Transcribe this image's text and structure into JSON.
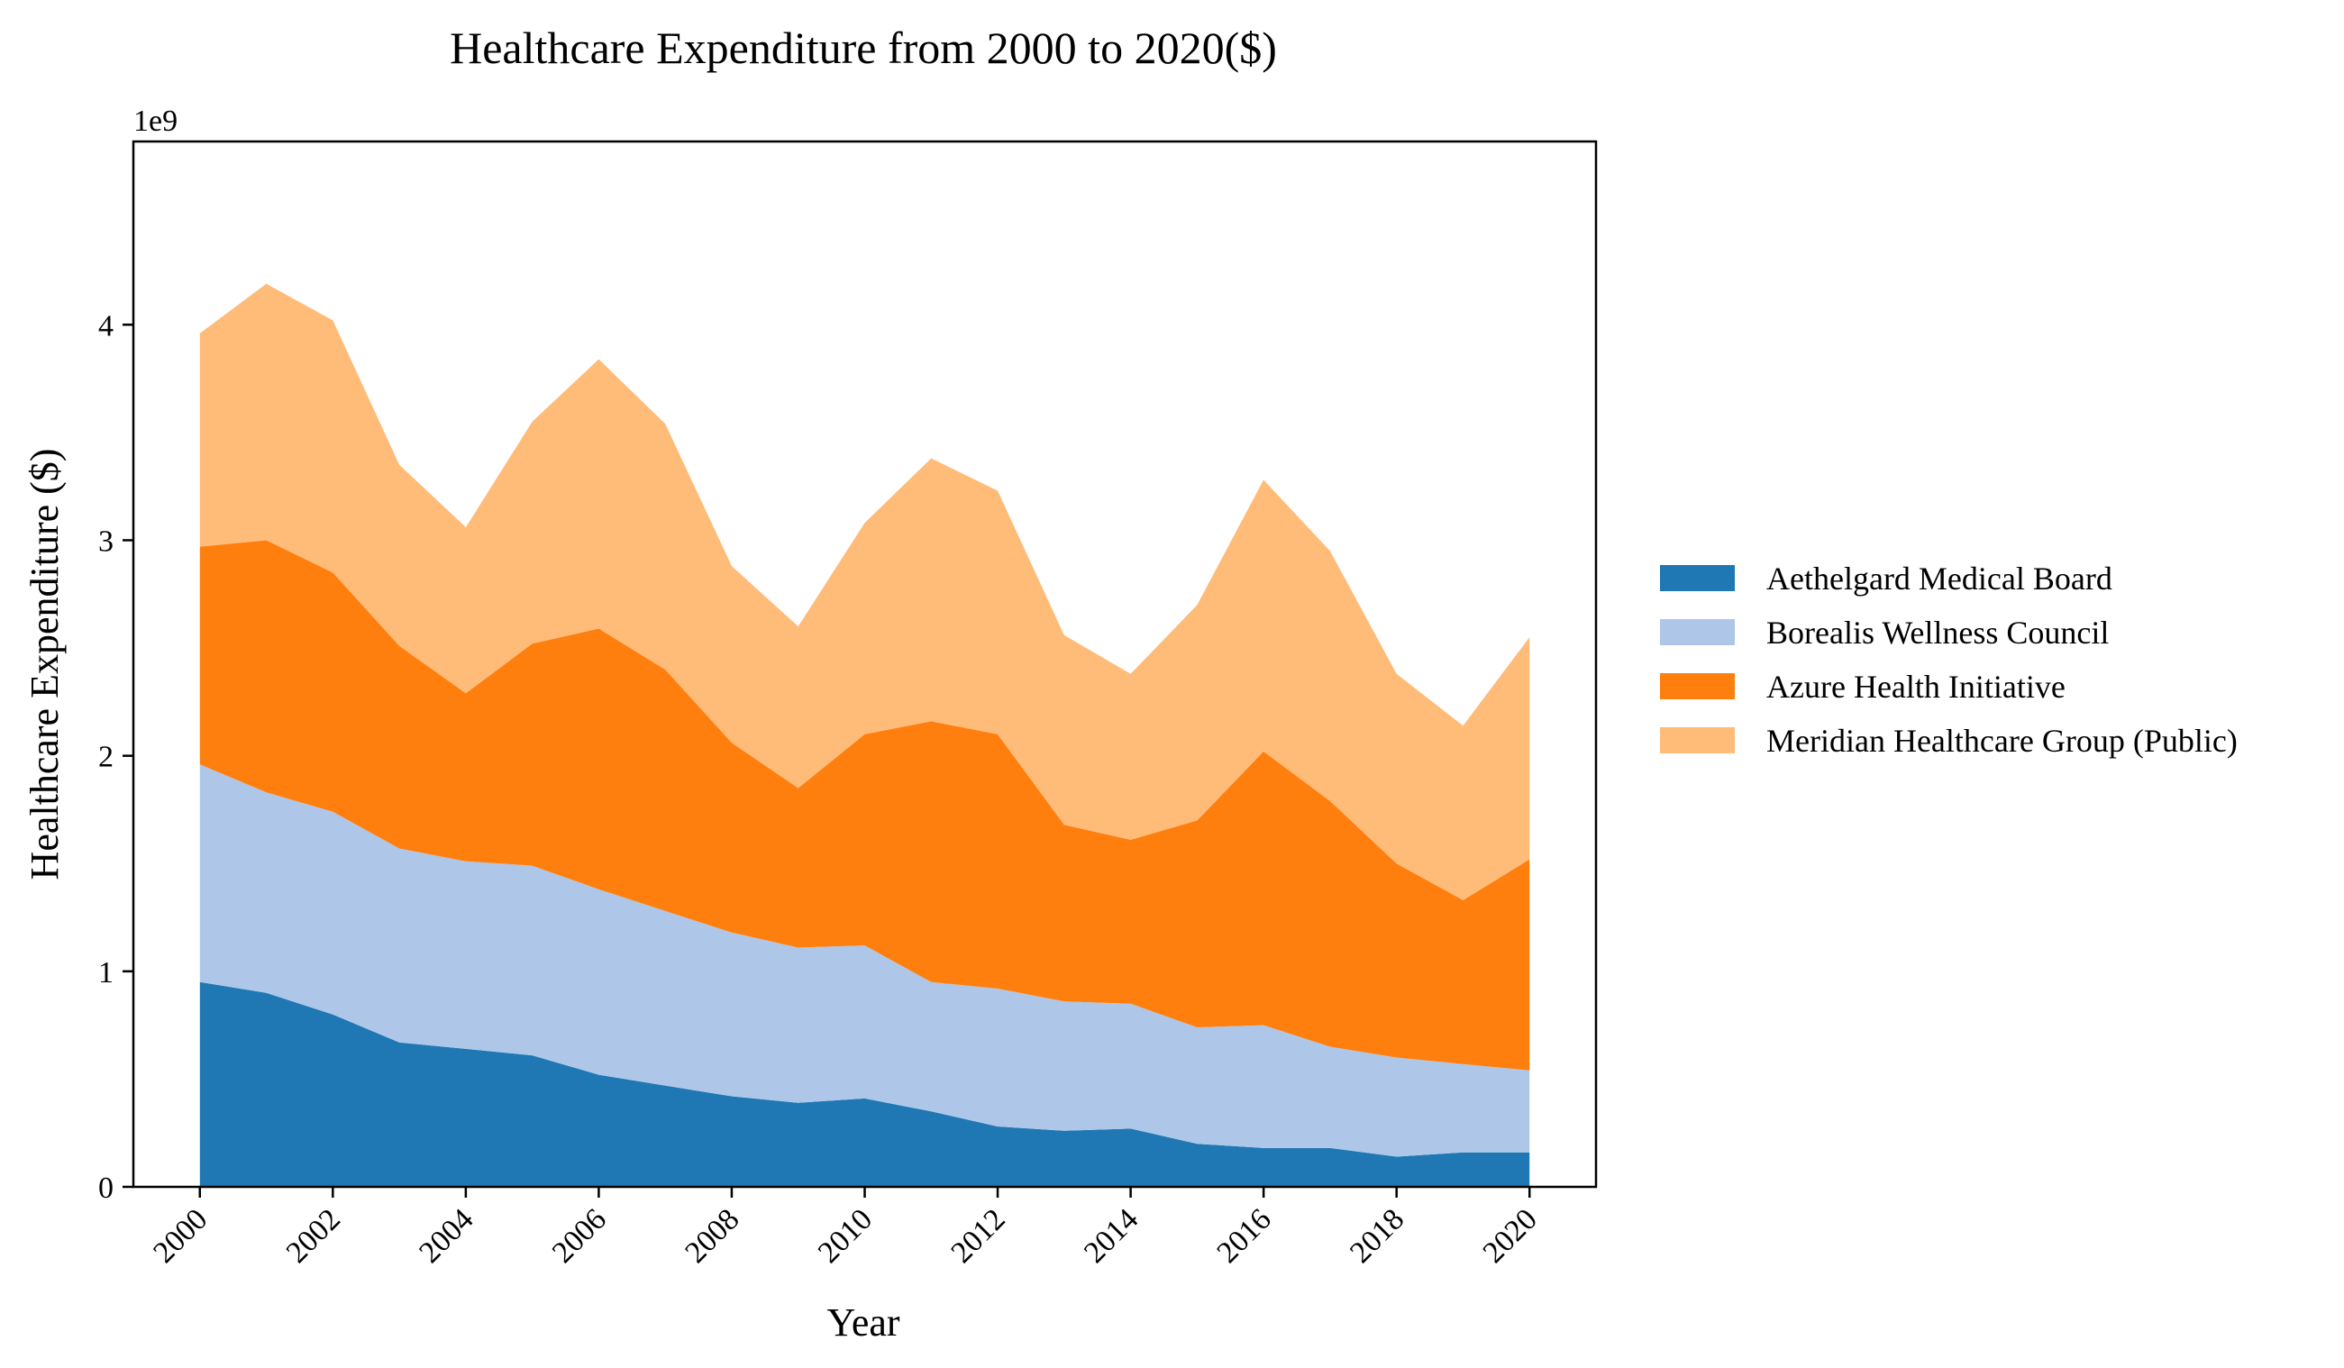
{
  "chart_data": {
    "type": "area",
    "stacked": true,
    "title": "Healthcare Expenditure from 2000 to 2020($)",
    "xlabel": "Year",
    "ylabel": "Healthcare Expenditure ($)",
    "y_offset_label": "1e9",
    "x": [
      2000,
      2001,
      2002,
      2003,
      2004,
      2005,
      2006,
      2007,
      2008,
      2009,
      2010,
      2011,
      2012,
      2013,
      2014,
      2015,
      2016,
      2017,
      2018,
      2019,
      2020
    ],
    "x_ticks": [
      "2000",
      "2002",
      "2004",
      "2006",
      "2008",
      "2010",
      "2012",
      "2014",
      "2016",
      "2018",
      "2020"
    ],
    "xlim": [
      1999,
      2021.0
    ],
    "y_ticks": [
      "0",
      "1",
      "2",
      "3",
      "4"
    ],
    "ylim": [
      0,
      4.85
    ],
    "legend_position": "right",
    "series": [
      {
        "name": "Aethelgard Medical Board",
        "color": "#1f77b4",
        "values": [
          0.95,
          0.9,
          0.8,
          0.67,
          0.64,
          0.61,
          0.52,
          0.47,
          0.42,
          0.39,
          0.41,
          0.35,
          0.28,
          0.26,
          0.27,
          0.2,
          0.18,
          0.18,
          0.14,
          0.16,
          0.16
        ]
      },
      {
        "name": "Borealis Wellness Council",
        "color": "#aec7e8",
        "values": [
          1.01,
          0.93,
          0.94,
          0.9,
          0.87,
          0.88,
          0.86,
          0.81,
          0.76,
          0.72,
          0.71,
          0.6,
          0.64,
          0.6,
          0.58,
          0.54,
          0.57,
          0.47,
          0.46,
          0.41,
          0.38
        ]
      },
      {
        "name": "Azure Health Initiative",
        "color": "#ff7f0e",
        "values": [
          1.01,
          1.17,
          1.11,
          0.94,
          0.78,
          1.03,
          1.21,
          1.12,
          0.88,
          0.74,
          0.98,
          1.21,
          1.18,
          0.82,
          0.76,
          0.96,
          1.27,
          1.14,
          0.9,
          0.76,
          0.98
        ]
      },
      {
        "name": "Meridian Healthcare Group (Public)",
        "color": "#ffbb78",
        "values": [
          0.99,
          1.19,
          1.17,
          0.84,
          0.77,
          1.03,
          1.25,
          1.14,
          0.82,
          0.75,
          0.98,
          1.22,
          1.13,
          0.88,
          0.77,
          1.0,
          1.26,
          1.16,
          0.88,
          0.81,
          1.03
        ]
      }
    ]
  }
}
